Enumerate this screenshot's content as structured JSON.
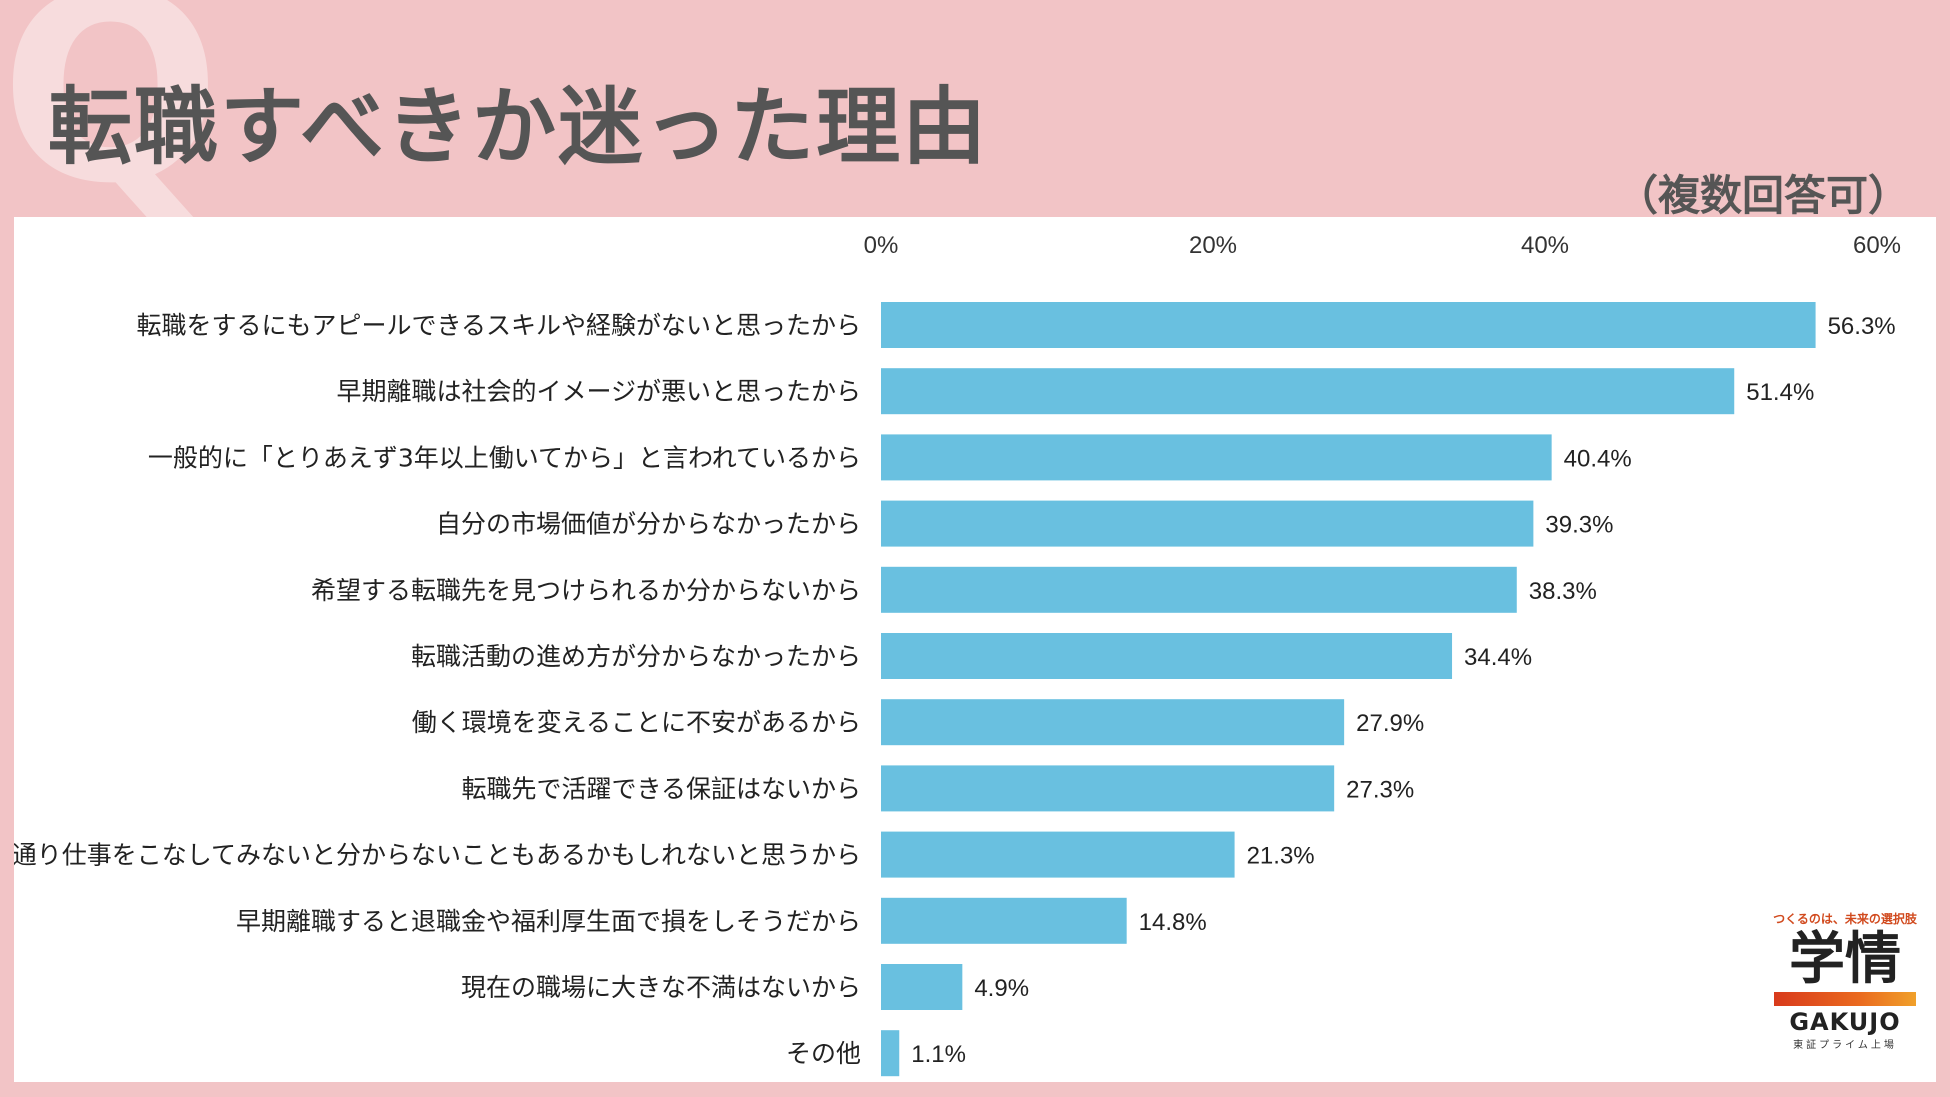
{
  "header": {
    "q_mark": "Q",
    "title": "転職すべきか迷った理由",
    "subtitle": "（複数回答可）"
  },
  "chart_data": {
    "type": "bar",
    "orientation": "horizontal",
    "title": "転職すべきか迷った理由",
    "xlim": [
      0,
      60
    ],
    "ticks": [
      "0%",
      "20%",
      "40%",
      "60%"
    ],
    "tick_values": [
      0,
      20,
      40,
      60
    ],
    "unit": "%",
    "bar_color": "#69c0e0",
    "categories": [
      "転職をするにもアピールできるスキルや経験がないと思ったから",
      "早期離職は社会的イメージが悪いと思ったから",
      "一般的に「とりあえず3年以上働いてから」と言われているから",
      "自分の市場価値が分からなかったから",
      "希望する転職先を見つけられるか分からないから",
      "転職活動の進め方が分からなかったから",
      "働く環境を変えることに不安があるから",
      "転職先で活躍できる保証はないから",
      "一通り仕事をこなしてみないと分からないこともあるかもしれないと思うから",
      "早期離職すると退職金や福利厚生面で損をしそうだから",
      "現在の職場に大きな不満はないから",
      "その他"
    ],
    "values": [
      56.3,
      51.4,
      40.4,
      39.3,
      38.3,
      34.4,
      27.9,
      27.3,
      21.3,
      14.8,
      4.9,
      1.1
    ],
    "value_labels": [
      "56.3%",
      "51.4%",
      "40.4%",
      "39.3%",
      "38.3%",
      "34.4%",
      "27.9%",
      "27.3%",
      "21.3%",
      "14.8%",
      "4.9%",
      "1.1%"
    ]
  },
  "logo": {
    "tagline": "つくるのは、未来の選択肢",
    "name": "学情",
    "name_en": "GAKUJO",
    "listing": "東証プライム上場"
  }
}
